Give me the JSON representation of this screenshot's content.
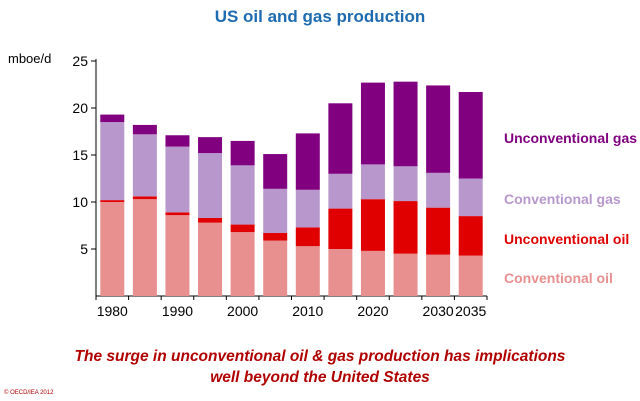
{
  "chart_data": {
    "type": "bar",
    "stacked": true,
    "title": "US oil and gas production",
    "ylabel": "mboe/d",
    "xlabel": "",
    "ylim": [
      0,
      25
    ],
    "yticks": [
      5,
      10,
      15,
      20,
      25
    ],
    "categories": [
      "1980",
      "1985",
      "1990",
      "1995",
      "2000",
      "2005",
      "2010",
      "2015",
      "2020",
      "2025",
      "2030",
      "2035"
    ],
    "xtick_labels": [
      "1980",
      "",
      "1990",
      "",
      "2000",
      "",
      "2010",
      "",
      "2020",
      "",
      "2030",
      "2035"
    ],
    "series": [
      {
        "name": "Conventional oil",
        "color": "#e88f8f",
        "values": [
          10.0,
          10.3,
          8.6,
          7.8,
          6.8,
          5.9,
          5.3,
          5.0,
          4.8,
          4.5,
          4.4,
          4.3
        ]
      },
      {
        "name": "Unconventional oil",
        "color": "#e00000",
        "values": [
          0.2,
          0.3,
          0.3,
          0.5,
          0.8,
          0.8,
          2.0,
          4.3,
          5.5,
          5.6,
          5.0,
          4.2
        ]
      },
      {
        "name": "Conventional gas",
        "color": "#b898cc",
        "values": [
          8.3,
          6.6,
          7.0,
          6.9,
          6.3,
          4.7,
          4.0,
          3.7,
          3.7,
          3.7,
          3.7,
          4.0
        ]
      },
      {
        "name": "Unconventional gas",
        "color": "#800080",
        "values": [
          0.8,
          1.0,
          1.2,
          1.7,
          2.6,
          3.7,
          6.0,
          7.5,
          8.7,
          9.0,
          9.3,
          9.2
        ]
      }
    ],
    "legend_position": "right"
  },
  "caption_line1": "The surge in unconventional oil & gas production has implications",
  "caption_line2": "well beyond the United States",
  "copyright": "© OECD/IEA 2012"
}
